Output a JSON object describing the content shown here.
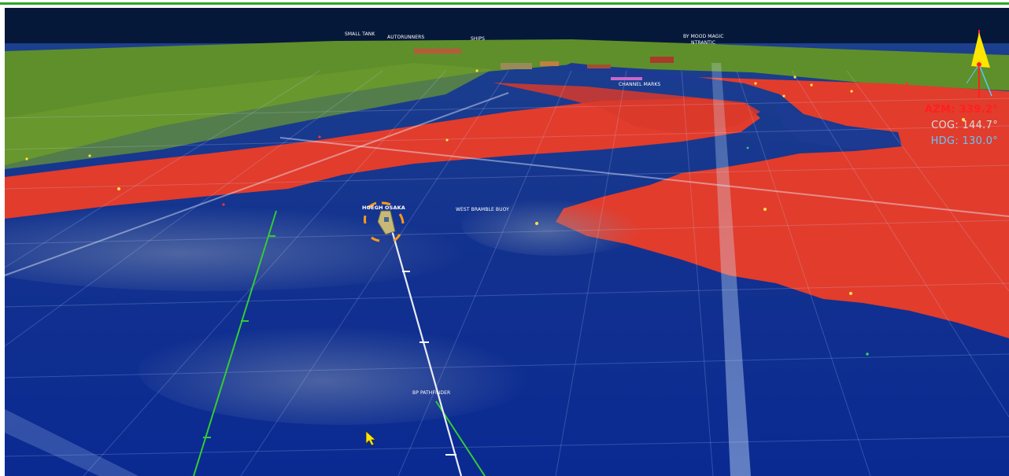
{
  "hud": {
    "azm": "AZM: 339.2°",
    "cog": "COG: 144.7°",
    "hdg": "HDG: 130.0°"
  },
  "vessel": {
    "name": "HOEGH OSAKA"
  },
  "labels": {
    "buoy_west_bramble": "WEST BRAMBLE BUOY",
    "pathfinder": "BP PATHFINDER",
    "far_a": "SMALL TANK",
    "far_b": "AUTORUNNERS",
    "far_c": "SHIPS",
    "far_d": "BY MOOD MAGIC",
    "far_e": "NTRANTIC",
    "far_f": "CHANNEL MARKS"
  },
  "colors": {
    "deep_water": "#0b2a8c",
    "shallow_water": "#e03a2a",
    "land": "#5f8f2a",
    "sky": "#06183a",
    "track_green": "#33cc33",
    "own_ship_ring": "#ff9a1a",
    "azm_color": "#ff2020",
    "cog_color": "#dcdcdc",
    "hdg_color": "#5ec8ff"
  },
  "icons": {
    "compass": "compass-icon",
    "vessel": "vessel-icon",
    "cursor": "cursor-icon"
  }
}
